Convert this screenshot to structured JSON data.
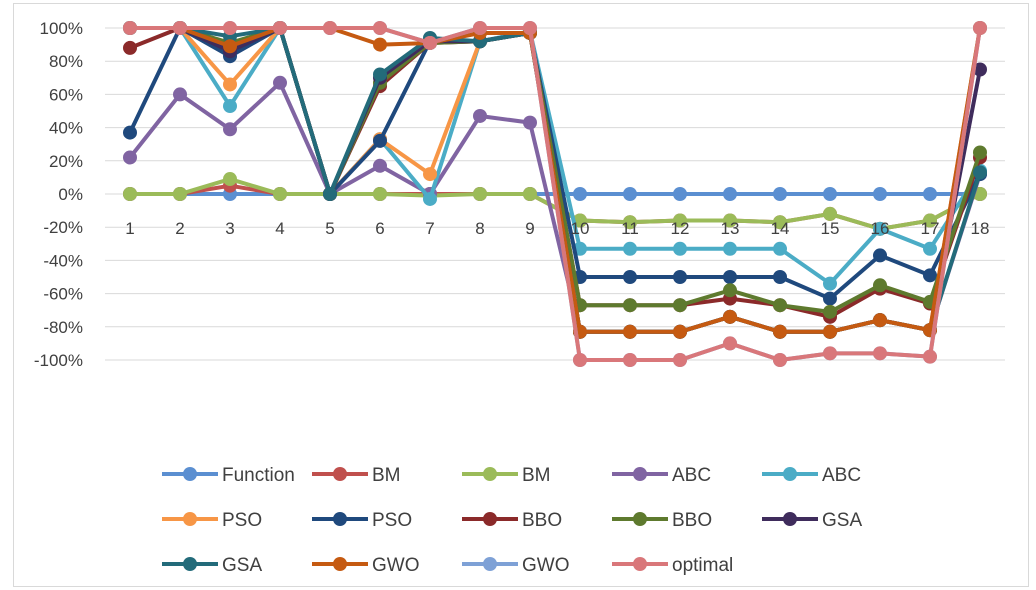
{
  "chart_data": {
    "type": "line",
    "title": "",
    "xlabel": "",
    "ylabel": "",
    "ylim": [
      -100,
      100
    ],
    "y_tick_step": 20,
    "y_format": "percent",
    "grid": "horizontal",
    "legend_position": "bottom",
    "categories": [
      "1",
      "2",
      "3",
      "4",
      "5",
      "6",
      "7",
      "8",
      "9",
      "10",
      "11",
      "12",
      "13",
      "14",
      "15",
      "16",
      "17",
      "18"
    ],
    "series": [
      {
        "name": "Function",
        "color": "#5b8fd1",
        "values": [
          0,
          0,
          0,
          0,
          0,
          0,
          0,
          0,
          0,
          0,
          0,
          0,
          0,
          0,
          0,
          0,
          0,
          0
        ]
      },
      {
        "name": "BM",
        "color": "#c0504d",
        "values": [
          0,
          0,
          5,
          0,
          0,
          0,
          0,
          0,
          0,
          -16,
          -17,
          -16,
          -16,
          -17,
          -12,
          -21,
          -16,
          0
        ]
      },
      {
        "name": "BM",
        "color": "#9bbb59",
        "values": [
          0,
          0,
          9,
          0,
          0,
          0,
          -1,
          0,
          0,
          -16,
          -17,
          -16,
          -16,
          -17,
          -12,
          -21,
          -16,
          0
        ]
      },
      {
        "name": "ABC",
        "color": "#8064a2",
        "values": [
          22,
          60,
          39,
          67,
          0,
          17,
          0,
          47,
          43,
          -83,
          -83,
          -83,
          -74,
          -83,
          -83,
          -76,
          -82,
          12
        ]
      },
      {
        "name": "ABC",
        "color": "#4bacc6",
        "values": [
          100,
          100,
          53,
          100,
          0,
          33,
          -3,
          92,
          98,
          -33,
          -33,
          -33,
          -33,
          -33,
          -54,
          -21,
          -33,
          14
        ]
      },
      {
        "name": "PSO",
        "color": "#f79646",
        "values": [
          100,
          100,
          66,
          100,
          0,
          33,
          12,
          92,
          97,
          -83,
          -83,
          -83,
          -74,
          -83,
          -83,
          -76,
          -82,
          100
        ]
      },
      {
        "name": "PSO",
        "color": "#1f497d",
        "values": [
          37,
          100,
          83,
          100,
          0,
          32,
          92,
          92,
          97,
          -50,
          -50,
          -50,
          -50,
          -50,
          -63,
          -37,
          -49,
          12
        ]
      },
      {
        "name": "BBO",
        "color": "#8b2a2a",
        "values": [
          88,
          100,
          87,
          100,
          0,
          65,
          91,
          92,
          97,
          -67,
          -67,
          -67,
          -63,
          -67,
          -74,
          -57,
          -66,
          22
        ]
      },
      {
        "name": "BBO",
        "color": "#5e7a2e",
        "values": [
          100,
          100,
          91,
          100,
          0,
          67,
          91,
          92,
          97,
          -67,
          -67,
          -67,
          -58,
          -67,
          -71,
          -55,
          -65,
          25
        ]
      },
      {
        "name": "GSA",
        "color": "#3f2c5c",
        "values": [
          100,
          100,
          86,
          100,
          0,
          70,
          92,
          92,
          97,
          -83,
          -83,
          -83,
          -74,
          -83,
          -83,
          -76,
          -82,
          75
        ]
      },
      {
        "name": "GSA",
        "color": "#236b7a",
        "values": [
          100,
          100,
          95,
          100,
          0,
          72,
          94,
          92,
          97,
          -83,
          -83,
          -83,
          -74,
          -83,
          -83,
          -76,
          -82,
          13
        ]
      },
      {
        "name": "GWO",
        "color": "#c55a11",
        "values": [
          100,
          100,
          89,
          100,
          100,
          90,
          91,
          97,
          97,
          -83,
          -83,
          -83,
          -74,
          -83,
          -83,
          -76,
          -82,
          100
        ]
      },
      {
        "name": "GWO",
        "color": "#7ea1d6",
        "values": [
          100,
          100,
          100,
          100,
          100,
          100,
          91,
          100,
          100,
          -100,
          -100,
          -100,
          -90,
          -100,
          -96,
          -96,
          -98,
          100
        ]
      },
      {
        "name": "optimal",
        "color": "#d9777a",
        "values": [
          100,
          100,
          100,
          100,
          100,
          100,
          91,
          100,
          100,
          -100,
          -100,
          -100,
          -90,
          -100,
          -96,
          -96,
          -98,
          100
        ]
      }
    ]
  }
}
